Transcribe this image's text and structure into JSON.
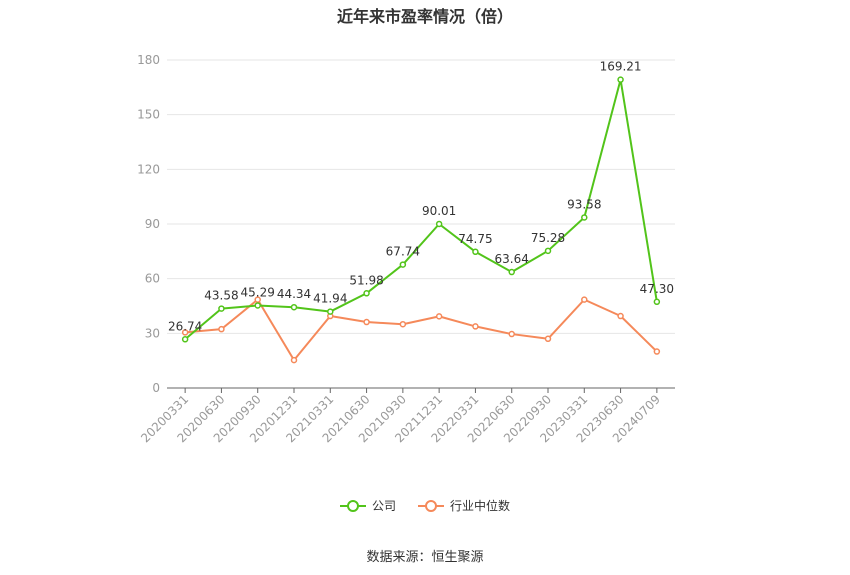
{
  "chart_data": {
    "type": "line",
    "title": "近年来市盈率情况（倍）",
    "source": "数据来源：恒生聚源",
    "categories": [
      "20200331",
      "20200630",
      "20200930",
      "20201231",
      "20210331",
      "20210630",
      "20210930",
      "20211231",
      "20220331",
      "20220630",
      "20220930",
      "20230331",
      "20230630",
      "20240709"
    ],
    "ylim": [
      0,
      180
    ],
    "yticks": [
      0,
      30,
      60,
      90,
      120,
      150,
      180
    ],
    "grid": true,
    "legend_position": "bottom",
    "series": [
      {
        "name": "公司",
        "color": "#52c41a",
        "labels": true,
        "values": [
          26.74,
          43.58,
          45.29,
          44.34,
          41.94,
          51.98,
          67.74,
          90.01,
          74.75,
          63.64,
          75.28,
          93.58,
          169.21,
          47.3
        ],
        "value_labels": [
          "26.74",
          "43.58",
          "45.29",
          "44.34",
          "41.94",
          "51.98",
          "67.74",
          "90.01",
          "74.75",
          "63.64",
          "75.28",
          "93.58",
          "169.21",
          "47.30"
        ]
      },
      {
        "name": "行业中位数",
        "color": "#f5895a",
        "labels": false,
        "values": [
          30.5,
          32.3,
          48.5,
          15.3,
          39.5,
          36.2,
          35.0,
          39.3,
          33.8,
          29.6,
          27.0,
          48.5,
          39.5,
          20.0
        ]
      }
    ]
  }
}
